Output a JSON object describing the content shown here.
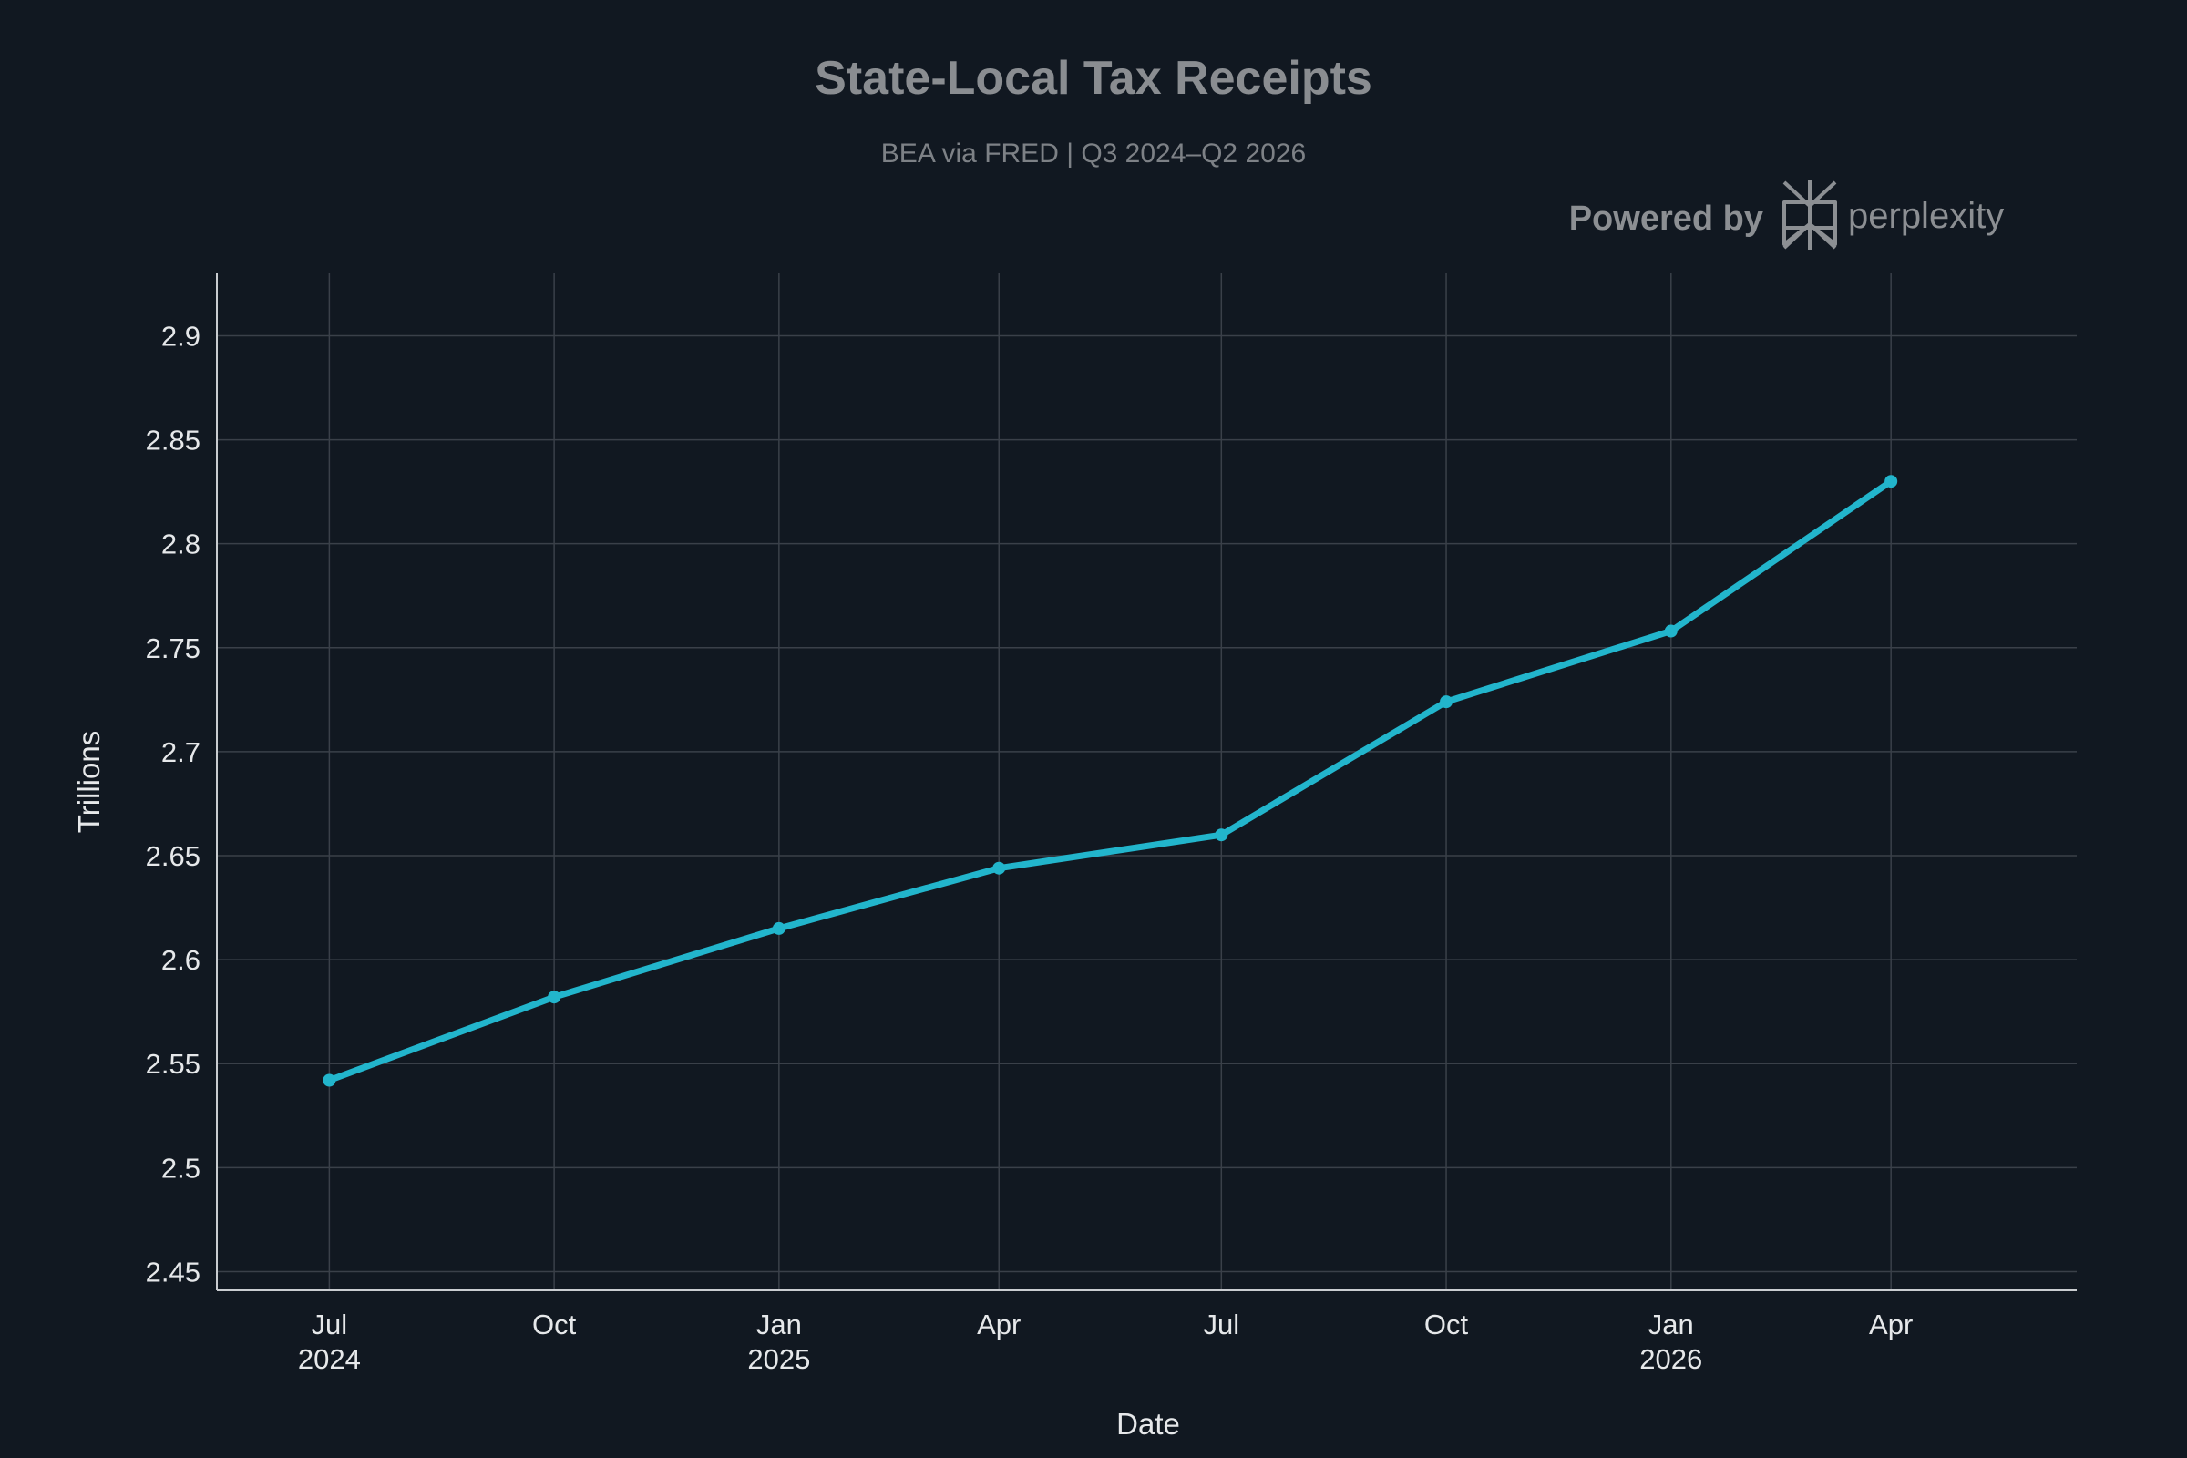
{
  "header": {
    "title": "State-Local Tax Receipts",
    "subtitle": "BEA via FRED | Q3 2024–Q2 2026"
  },
  "branding": {
    "powered_by": "Powered by",
    "name": "perplexity",
    "icon": "perplexity-logo-icon"
  },
  "colors": {
    "background": "#111821",
    "series": "#22b5cc",
    "grid": "#3a4049",
    "text": "#e6e8ea"
  },
  "chart_data": {
    "type": "line",
    "title": "State-Local Tax Receipts",
    "subtitle": "BEA via FRED | Q3 2024–Q2 2026",
    "xlabel": "Date",
    "ylabel": "Trillions",
    "x": [
      "2024-07-01",
      "2024-10-01",
      "2025-01-01",
      "2025-04-01",
      "2025-07-01",
      "2025-10-01",
      "2026-01-01",
      "2026-04-01"
    ],
    "series": [
      {
        "values": [
          2.542,
          2.582,
          2.615,
          2.644,
          2.66,
          2.724,
          2.758,
          2.83
        ]
      }
    ],
    "x_ticks": [
      {
        "date": "2024-07-01",
        "label": "Jul",
        "year": "2024"
      },
      {
        "date": "2024-10-01",
        "label": "Oct",
        "year": ""
      },
      {
        "date": "2025-01-01",
        "label": "Jan",
        "year": "2025"
      },
      {
        "date": "2025-04-01",
        "label": "Apr",
        "year": ""
      },
      {
        "date": "2025-07-01",
        "label": "Jul",
        "year": ""
      },
      {
        "date": "2025-10-01",
        "label": "Oct",
        "year": ""
      },
      {
        "date": "2026-01-01",
        "label": "Jan",
        "year": "2026"
      },
      {
        "date": "2026-04-01",
        "label": "Apr",
        "year": ""
      }
    ],
    "y_ticks": [
      2.45,
      2.5,
      2.55,
      2.6,
      2.65,
      2.7,
      2.75,
      2.8,
      2.85,
      2.9
    ],
    "xlim": [
      "2024-05-16",
      "2026-06-16"
    ],
    "ylim": [
      2.441,
      2.93
    ],
    "grid": true,
    "legend": "none"
  }
}
